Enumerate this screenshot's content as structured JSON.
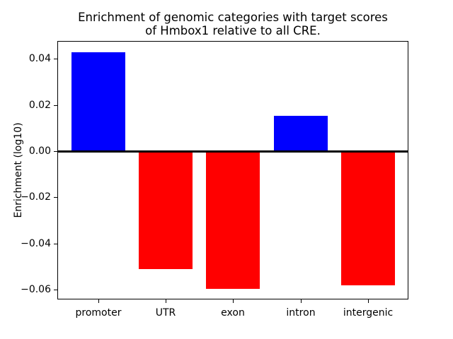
{
  "chart_data": {
    "type": "bar",
    "title": "Enrichment of genomic categories with target scores\nof Hmbox1 relative to all CRE.",
    "title_lines": [
      "Enrichment of genomic categories with target scores",
      "of Hmbox1 relative to all CRE."
    ],
    "xlabel": "",
    "ylabel": "Enrichment (log10)",
    "categories": [
      "promoter",
      "UTR",
      "exon",
      "intron",
      "intergenic"
    ],
    "values": [
      0.0428,
      -0.051,
      -0.0596,
      0.0152,
      -0.0581
    ],
    "bar_width_fraction": 0.8,
    "xlim": [
      -0.61,
      4.6
    ],
    "ylim": [
      -0.0642,
      0.0477
    ],
    "yticks": [
      0.04,
      0.02,
      0.0,
      -0.02,
      -0.04,
      -0.06
    ],
    "ytick_labels": [
      "0.04",
      "0.02",
      "0.00",
      "−0.02",
      "−0.04",
      "−0.06"
    ],
    "grid": false,
    "legend": null,
    "zero_line": true,
    "colors": {
      "positive_bar": "#0000ff",
      "negative_bar": "#ff0000",
      "zero_line": "#000000",
      "spine": "#000000",
      "tick": "#000000",
      "text": "#000000",
      "background": "#ffffff"
    }
  }
}
